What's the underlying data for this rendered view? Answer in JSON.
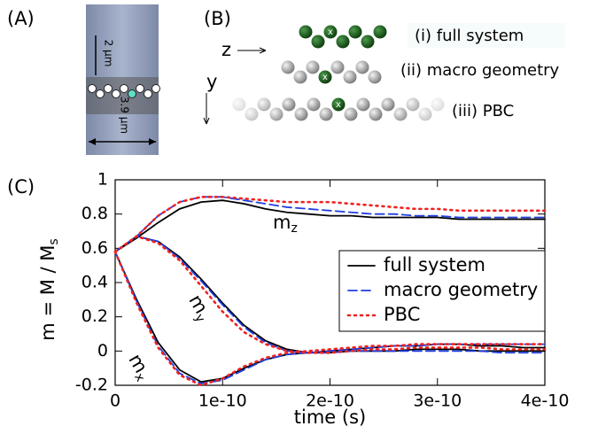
{
  "panels": {
    "a": {
      "label": "(A)",
      "scale_vertical": "2 µm",
      "scale_horizontal": "3.9 µm"
    },
    "b": {
      "label": "(B)",
      "axis_z": "z",
      "axis_y": "y",
      "marker": "x",
      "items": [
        "(i) full system",
        "(ii) macro geometry",
        "(iii) PBC"
      ]
    },
    "c": {
      "label": "(C)"
    }
  },
  "chart_data": {
    "type": "line",
    "xlabel": "time (s)",
    "ylabel": "m = M / M",
    "ylabel_sub": "s",
    "x": [
      0,
      2e-11,
      4e-11,
      6e-11,
      8e-11,
      1e-10,
      1.2e-10,
      1.4e-10,
      1.6e-10,
      1.8e-10,
      2e-10,
      2.2e-10,
      2.4e-10,
      2.6e-10,
      2.8e-10,
      3e-10,
      3.2e-10,
      3.4e-10,
      3.6e-10,
      3.8e-10,
      4e-10
    ],
    "xlim": [
      0,
      4e-10
    ],
    "xticks": [
      0,
      1e-10,
      2e-10,
      3e-10,
      4e-10
    ],
    "ylim": [
      -0.2,
      1
    ],
    "yticks": [
      -0.2,
      0,
      0.2,
      0.4,
      0.6,
      0.8,
      1
    ],
    "legend": "upper right",
    "curve_labels": [
      {
        "text": "m",
        "sub": "x"
      },
      {
        "text": "m",
        "sub": "y"
      },
      {
        "text": "m",
        "sub": "z"
      }
    ],
    "series": [
      {
        "name": "full system",
        "color": "#000000",
        "dash": "solid",
        "components": [
          {
            "values": [
              0.58,
              0.3,
              0.05,
              -0.11,
              -0.18,
              -0.16,
              -0.1,
              -0.05,
              -0.02,
              -0.01,
              0.0,
              0.01,
              0.02,
              0.03,
              0.03,
              0.04,
              0.04,
              0.03,
              0.03,
              0.02,
              0.02
            ]
          },
          {
            "values": [
              0.58,
              0.67,
              0.64,
              0.55,
              0.42,
              0.28,
              0.15,
              0.06,
              0.01,
              -0.01,
              -0.01,
              0.0,
              0.0,
              0.0,
              0.01,
              0.01,
              0.01,
              0.0,
              0.0,
              0.0,
              0.0
            ]
          },
          {
            "values": [
              0.58,
              0.66,
              0.75,
              0.83,
              0.87,
              0.88,
              0.86,
              0.83,
              0.81,
              0.8,
              0.79,
              0.79,
              0.78,
              0.78,
              0.78,
              0.78,
              0.77,
              0.77,
              0.77,
              0.77,
              0.77
            ]
          }
        ]
      },
      {
        "name": "macro geometry",
        "color": "#1f3fe0",
        "dash": "dashed",
        "components": [
          {
            "values": [
              0.58,
              0.29,
              0.03,
              -0.13,
              -0.19,
              -0.17,
              -0.11,
              -0.05,
              -0.02,
              -0.01,
              0.0,
              0.01,
              0.02,
              0.03,
              0.03,
              0.04,
              0.04,
              0.04,
              0.04,
              0.04,
              0.04
            ]
          },
          {
            "values": [
              0.58,
              0.67,
              0.64,
              0.54,
              0.41,
              0.27,
              0.14,
              0.05,
              0.0,
              -0.01,
              -0.01,
              0.0,
              0.0,
              0.0,
              0.0,
              0.0,
              0.0,
              0.0,
              -0.01,
              -0.01,
              -0.01
            ]
          },
          {
            "values": [
              0.58,
              0.67,
              0.79,
              0.87,
              0.9,
              0.9,
              0.88,
              0.86,
              0.84,
              0.83,
              0.82,
              0.81,
              0.8,
              0.8,
              0.79,
              0.79,
              0.78,
              0.78,
              0.78,
              0.78,
              0.78
            ]
          }
        ]
      },
      {
        "name": "PBC",
        "color": "#ee2222",
        "dash": "dotted",
        "components": [
          {
            "values": [
              0.58,
              0.28,
              0.02,
              -0.14,
              -0.2,
              -0.16,
              -0.09,
              -0.04,
              -0.01,
              0.0,
              0.01,
              0.02,
              0.03,
              0.03,
              0.04,
              0.04,
              0.04,
              0.04,
              0.04,
              0.04,
              0.04
            ]
          },
          {
            "values": [
              0.58,
              0.67,
              0.63,
              0.53,
              0.38,
              0.23,
              0.11,
              0.04,
              0.0,
              -0.01,
              -0.01,
              0.0,
              0.01,
              0.01,
              0.02,
              0.02,
              0.02,
              0.02,
              0.01,
              0.01,
              0.01
            ]
          },
          {
            "values": [
              0.58,
              0.67,
              0.79,
              0.87,
              0.9,
              0.9,
              0.89,
              0.88,
              0.87,
              0.87,
              0.87,
              0.86,
              0.85,
              0.84,
              0.83,
              0.83,
              0.82,
              0.82,
              0.82,
              0.82,
              0.82
            ]
          }
        ]
      }
    ]
  }
}
